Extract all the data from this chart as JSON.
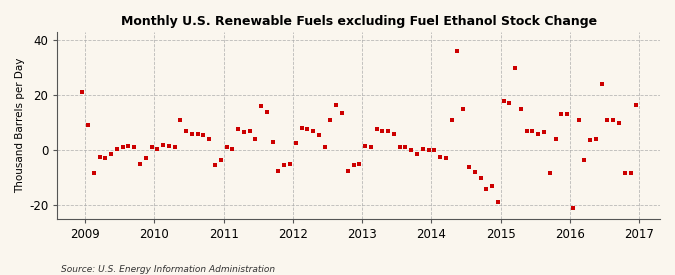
{
  "title": "Monthly U.S. Renewable Fuels excluding Fuel Ethanol Stock Change",
  "ylabel": "Thousand Barrels per Day",
  "source": "Source: U.S. Energy Information Administration",
  "background_color": "#faf6ee",
  "marker_color": "#cc0000",
  "ylim": [
    -25,
    43
  ],
  "yticks": [
    -20,
    0,
    20,
    40
  ],
  "xlim": [
    2008.6,
    2017.3
  ],
  "xticks": [
    2009,
    2010,
    2011,
    2012,
    2013,
    2014,
    2015,
    2016,
    2017
  ],
  "raw_data": [
    [
      2008,
      12,
      21.0
    ],
    [
      2009,
      1,
      9.0
    ],
    [
      2009,
      2,
      -8.5
    ],
    [
      2009,
      3,
      -2.5
    ],
    [
      2009,
      4,
      -3.0
    ],
    [
      2009,
      5,
      -1.5
    ],
    [
      2009,
      6,
      0.5
    ],
    [
      2009,
      7,
      1.0
    ],
    [
      2009,
      8,
      1.5
    ],
    [
      2009,
      9,
      1.0
    ],
    [
      2009,
      10,
      -5.0
    ],
    [
      2009,
      11,
      -3.0
    ],
    [
      2009,
      12,
      1.0
    ],
    [
      2010,
      1,
      0.5
    ],
    [
      2010,
      2,
      2.0
    ],
    [
      2010,
      3,
      1.5
    ],
    [
      2010,
      4,
      1.0
    ],
    [
      2010,
      5,
      11.0
    ],
    [
      2010,
      6,
      7.0
    ],
    [
      2010,
      7,
      6.0
    ],
    [
      2010,
      8,
      6.0
    ],
    [
      2010,
      9,
      5.5
    ],
    [
      2010,
      10,
      4.0
    ],
    [
      2010,
      11,
      -5.5
    ],
    [
      2010,
      12,
      -3.5
    ],
    [
      2011,
      1,
      1.0
    ],
    [
      2011,
      2,
      0.5
    ],
    [
      2011,
      3,
      7.5
    ],
    [
      2011,
      4,
      6.5
    ],
    [
      2011,
      5,
      7.0
    ],
    [
      2011,
      6,
      4.0
    ],
    [
      2011,
      7,
      16.0
    ],
    [
      2011,
      8,
      14.0
    ],
    [
      2011,
      9,
      3.0
    ],
    [
      2011,
      10,
      -7.5
    ],
    [
      2011,
      11,
      -5.5
    ],
    [
      2011,
      12,
      -5.0
    ],
    [
      2012,
      1,
      2.5
    ],
    [
      2012,
      2,
      8.0
    ],
    [
      2012,
      3,
      7.5
    ],
    [
      2012,
      4,
      7.0
    ],
    [
      2012,
      5,
      5.5
    ],
    [
      2012,
      6,
      1.0
    ],
    [
      2012,
      7,
      11.0
    ],
    [
      2012,
      8,
      16.5
    ],
    [
      2012,
      9,
      13.5
    ],
    [
      2012,
      10,
      -7.5
    ],
    [
      2012,
      11,
      -5.5
    ],
    [
      2012,
      12,
      -5.0
    ],
    [
      2013,
      1,
      1.5
    ],
    [
      2013,
      2,
      1.0
    ],
    [
      2013,
      3,
      7.5
    ],
    [
      2013,
      4,
      7.0
    ],
    [
      2013,
      5,
      7.0
    ],
    [
      2013,
      6,
      6.0
    ],
    [
      2013,
      7,
      1.0
    ],
    [
      2013,
      8,
      1.0
    ],
    [
      2013,
      9,
      0.0
    ],
    [
      2013,
      10,
      -1.5
    ],
    [
      2013,
      11,
      0.5
    ],
    [
      2013,
      12,
      0.0
    ],
    [
      2014,
      1,
      0.0
    ],
    [
      2014,
      2,
      -2.5
    ],
    [
      2014,
      3,
      -3.0
    ],
    [
      2014,
      4,
      11.0
    ],
    [
      2014,
      5,
      36.0
    ],
    [
      2014,
      6,
      15.0
    ],
    [
      2014,
      7,
      -6.0
    ],
    [
      2014,
      8,
      -8.0
    ],
    [
      2014,
      9,
      -10.0
    ],
    [
      2014,
      10,
      -14.0
    ],
    [
      2014,
      11,
      -13.0
    ],
    [
      2014,
      12,
      -19.0
    ],
    [
      2015,
      1,
      18.0
    ],
    [
      2015,
      2,
      17.0
    ],
    [
      2015,
      3,
      30.0
    ],
    [
      2015,
      4,
      15.0
    ],
    [
      2015,
      5,
      7.0
    ],
    [
      2015,
      6,
      7.0
    ],
    [
      2015,
      7,
      6.0
    ],
    [
      2015,
      8,
      6.5
    ],
    [
      2015,
      9,
      -8.5
    ],
    [
      2015,
      10,
      4.0
    ],
    [
      2015,
      11,
      13.0
    ],
    [
      2015,
      12,
      13.0
    ],
    [
      2016,
      1,
      -21.0
    ],
    [
      2016,
      2,
      11.0
    ],
    [
      2016,
      3,
      -3.5
    ],
    [
      2016,
      4,
      3.5
    ],
    [
      2016,
      5,
      4.0
    ],
    [
      2016,
      6,
      24.0
    ],
    [
      2016,
      7,
      11.0
    ],
    [
      2016,
      8,
      11.0
    ],
    [
      2016,
      9,
      10.0
    ],
    [
      2016,
      10,
      -8.5
    ],
    [
      2016,
      11,
      -8.5
    ],
    [
      2016,
      12,
      16.5
    ]
  ]
}
